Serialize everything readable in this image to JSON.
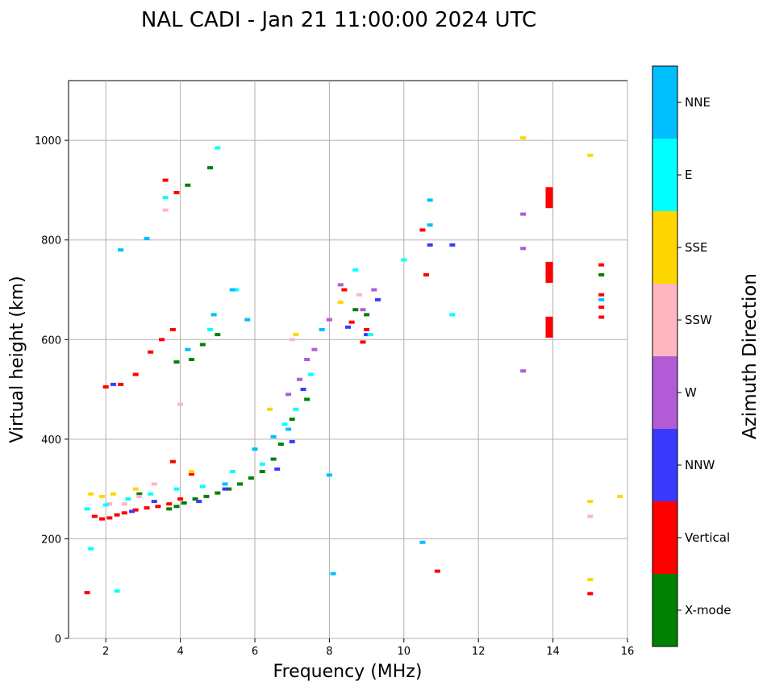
{
  "chart_data": {
    "type": "scatter",
    "title": "NAL CADI - Jan 21 11:00:00 2024 UTC",
    "xlabel": "Frequency (MHz)",
    "ylabel": "Virtual height (km)",
    "xlim": [
      1,
      16
    ],
    "ylim": [
      0,
      1120
    ],
    "xticks": [
      2,
      4,
      6,
      8,
      10,
      12,
      14,
      16
    ],
    "yticks": [
      0,
      200,
      400,
      600,
      800,
      1000
    ],
    "grid": true,
    "colorbar": {
      "title": "Azimuth Direction",
      "categories": [
        {
          "name": "X-mode",
          "color": "#008000"
        },
        {
          "name": "Vertical",
          "color": "#ff0000"
        },
        {
          "name": "NNW",
          "color": "#3a3aff"
        },
        {
          "name": "W",
          "color": "#b15bd6"
        },
        {
          "name": "SSW",
          "color": "#ffb6c1"
        },
        {
          "name": "SSE",
          "color": "#ffd700"
        },
        {
          "name": "E",
          "color": "#00ffff"
        },
        {
          "name": "NNE",
          "color": "#00bfff"
        }
      ]
    },
    "series": [
      {
        "name": "X-mode",
        "points": [
          [
            3.7,
            260
          ],
          [
            3.9,
            265
          ],
          [
            4.1,
            272
          ],
          [
            4.4,
            280
          ],
          [
            4.7,
            285
          ],
          [
            5.0,
            292
          ],
          [
            5.3,
            300
          ],
          [
            5.6,
            310
          ],
          [
            5.9,
            322
          ],
          [
            6.2,
            335
          ],
          [
            6.5,
            360
          ],
          [
            6.7,
            390
          ],
          [
            7.0,
            440
          ],
          [
            7.4,
            480
          ],
          [
            3.9,
            555
          ],
          [
            4.3,
            560
          ],
          [
            4.6,
            590
          ],
          [
            5.0,
            610
          ],
          [
            4.2,
            910
          ],
          [
            4.8,
            945
          ],
          [
            9.0,
            650
          ],
          [
            8.7,
            660
          ],
          [
            15.3,
            730
          ],
          [
            2.9,
            290
          ]
        ]
      },
      {
        "name": "Vertical",
        "points": [
          [
            1.7,
            245
          ],
          [
            1.9,
            240
          ],
          [
            2.1,
            242
          ],
          [
            2.3,
            248
          ],
          [
            2.5,
            252
          ],
          [
            2.8,
            258
          ],
          [
            3.1,
            262
          ],
          [
            3.4,
            265
          ],
          [
            3.7,
            270
          ],
          [
            4.0,
            280
          ],
          [
            4.3,
            330
          ],
          [
            3.8,
            355
          ],
          [
            2.0,
            505
          ],
          [
            2.4,
            510
          ],
          [
            2.8,
            530
          ],
          [
            3.2,
            575
          ],
          [
            3.5,
            600
          ],
          [
            3.8,
            620
          ],
          [
            3.6,
            920
          ],
          [
            3.9,
            895
          ],
          [
            8.4,
            700
          ],
          [
            8.6,
            635
          ],
          [
            9.0,
            620
          ],
          [
            8.9,
            595
          ],
          [
            10.5,
            820
          ],
          [
            10.6,
            730
          ],
          [
            10.9,
            135
          ],
          [
            13.9,
            885
          ],
          [
            13.9,
            735
          ],
          [
            13.9,
            625
          ],
          [
            15.3,
            690
          ],
          [
            15.3,
            665
          ],
          [
            15.3,
            645
          ],
          [
            15.3,
            750
          ],
          [
            15.0,
            90
          ],
          [
            1.5,
            92
          ]
        ]
      },
      {
        "name": "NNW",
        "points": [
          [
            2.7,
            255
          ],
          [
            3.3,
            275
          ],
          [
            4.5,
            275
          ],
          [
            5.2,
            300
          ],
          [
            6.6,
            340
          ],
          [
            7.0,
            395
          ],
          [
            7.3,
            500
          ],
          [
            8.5,
            625
          ],
          [
            9.0,
            610
          ],
          [
            9.3,
            680
          ],
          [
            10.7,
            790
          ],
          [
            11.3,
            790
          ],
          [
            2.2,
            510
          ]
        ]
      },
      {
        "name": "W",
        "points": [
          [
            6.9,
            490
          ],
          [
            7.2,
            520
          ],
          [
            7.4,
            560
          ],
          [
            8.0,
            640
          ],
          [
            8.3,
            710
          ],
          [
            9.2,
            700
          ],
          [
            13.2,
            783
          ],
          [
            13.2,
            852
          ],
          [
            13.2,
            537
          ],
          [
            8.9,
            660
          ],
          [
            7.6,
            580
          ]
        ]
      },
      {
        "name": "SSW",
        "points": [
          [
            2.1,
            270
          ],
          [
            2.5,
            270
          ],
          [
            2.9,
            285
          ],
          [
            3.6,
            860
          ],
          [
            4.0,
            470
          ],
          [
            7.0,
            600
          ],
          [
            15.0,
            245
          ],
          [
            8.8,
            690
          ],
          [
            3.3,
            310
          ]
        ]
      },
      {
        "name": "SSE",
        "points": [
          [
            1.6,
            290
          ],
          [
            1.9,
            285
          ],
          [
            2.2,
            290
          ],
          [
            2.8,
            300
          ],
          [
            4.3,
            335
          ],
          [
            6.4,
            460
          ],
          [
            7.1,
            610
          ],
          [
            13.2,
            1005
          ],
          [
            15.0,
            970
          ],
          [
            15.0,
            275
          ],
          [
            15.0,
            118
          ],
          [
            15.8,
            285
          ],
          [
            8.3,
            675
          ]
        ]
      },
      {
        "name": "E",
        "points": [
          [
            1.5,
            260
          ],
          [
            2.0,
            268
          ],
          [
            2.6,
            280
          ],
          [
            3.2,
            290
          ],
          [
            3.9,
            300
          ],
          [
            4.6,
            305
          ],
          [
            5.4,
            335
          ],
          [
            6.2,
            350
          ],
          [
            6.8,
            430
          ],
          [
            7.1,
            460
          ],
          [
            7.5,
            530
          ],
          [
            3.6,
            885
          ],
          [
            5.0,
            985
          ],
          [
            5.5,
            700
          ],
          [
            4.8,
            620
          ],
          [
            9.1,
            610
          ],
          [
            10.0,
            760
          ],
          [
            11.3,
            650
          ],
          [
            8.7,
            740
          ],
          [
            1.6,
            180
          ],
          [
            2.3,
            95
          ]
        ]
      },
      {
        "name": "NNE",
        "points": [
          [
            5.8,
            640
          ],
          [
            5.4,
            700
          ],
          [
            4.9,
            650
          ],
          [
            4.2,
            580
          ],
          [
            6.0,
            380
          ],
          [
            6.5,
            405
          ],
          [
            7.8,
            620
          ],
          [
            10.7,
            880
          ],
          [
            10.7,
            830
          ],
          [
            10.5,
            193
          ],
          [
            8.1,
            130
          ],
          [
            8.0,
            328
          ],
          [
            15.3,
            680
          ],
          [
            2.4,
            780
          ],
          [
            3.1,
            803
          ],
          [
            5.2,
            310
          ],
          [
            6.9,
            420
          ]
        ]
      }
    ]
  }
}
